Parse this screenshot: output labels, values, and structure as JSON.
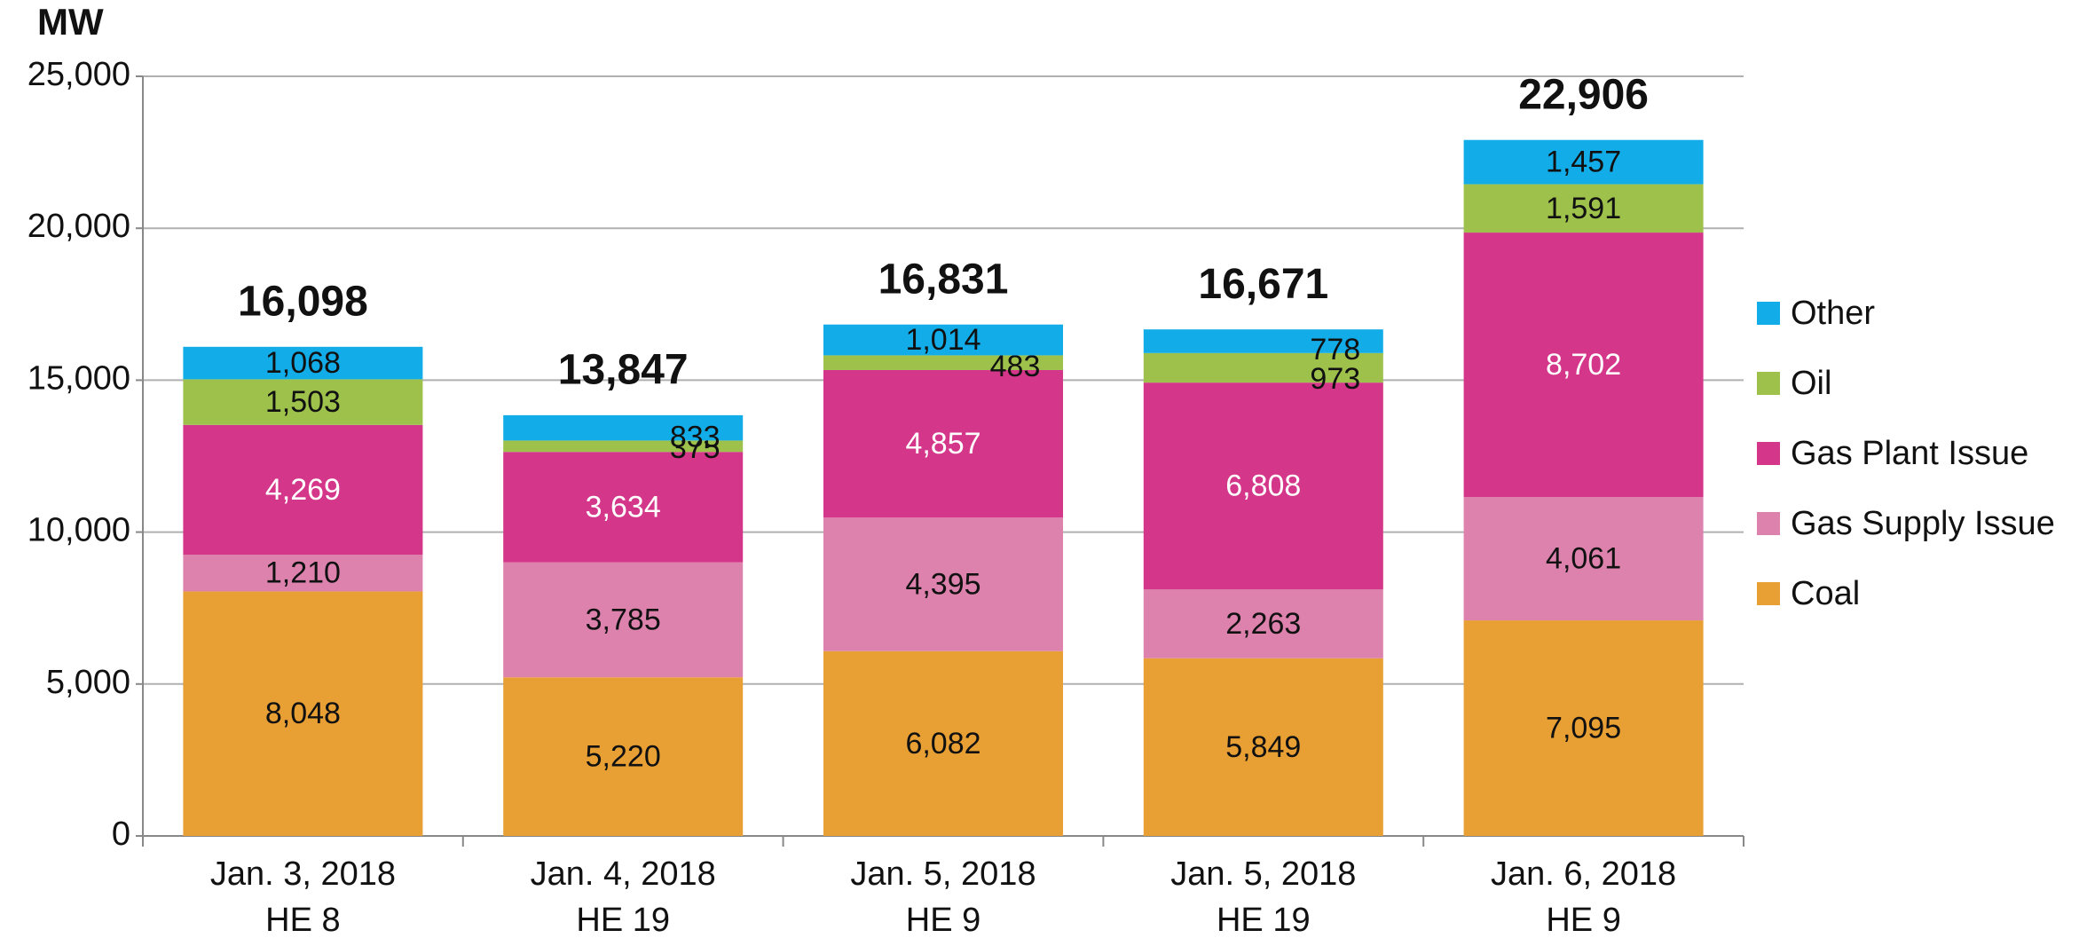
{
  "chart_data": {
    "type": "stacked_bar",
    "y_label": "MW",
    "categories": [
      [
        "Jan. 3, 2018",
        "HE 8"
      ],
      [
        "Jan. 4, 2018",
        "HE 19"
      ],
      [
        "Jan. 5, 2018",
        "HE 9"
      ],
      [
        "Jan. 5, 2018",
        "HE 19"
      ],
      [
        "Jan. 6, 2018",
        "HE 9"
      ]
    ],
    "series": [
      {
        "name": "Coal",
        "color": "#e89f33",
        "label_color": "#111111",
        "values": [
          8048,
          5220,
          6082,
          5849,
          7095
        ],
        "value_labels": [
          "8,048",
          "5,220",
          "6,082",
          "5,849",
          "7,095"
        ]
      },
      {
        "name": "Gas Supply Issue",
        "color": "#dc82ad",
        "label_color": "#111111",
        "values": [
          1210,
          3785,
          4395,
          2263,
          4061
        ],
        "value_labels": [
          "1,210",
          "3,785",
          "4,395",
          "2,263",
          "4,061"
        ]
      },
      {
        "name": "Gas Plant Issue",
        "color": "#d4368a",
        "label_color": "#ffffff",
        "values": [
          4269,
          3634,
          4857,
          6808,
          8702
        ],
        "value_labels": [
          "4,269",
          "3,634",
          "4,857",
          "6,808",
          "8,702"
        ]
      },
      {
        "name": "Oil",
        "color": "#9dc14b",
        "label_color": "#111111",
        "values": [
          1503,
          375,
          483,
          973,
          1591
        ],
        "value_labels": [
          "1,503",
          "375",
          "483",
          "973",
          "1,591"
        ]
      },
      {
        "name": "Other",
        "color": "#12ade8",
        "label_color": "#111111",
        "values": [
          1068,
          833,
          1014,
          778,
          1457
        ],
        "value_labels": [
          "1,068",
          "833",
          "1,014",
          "778",
          "1,457"
        ]
      }
    ],
    "totals": [
      16098,
      13847,
      16831,
      16671,
      22906
    ],
    "total_labels": [
      "16,098",
      "13,847",
      "16,831",
      "16,671",
      "22,906"
    ],
    "ylim": [
      0,
      25000
    ],
    "yticks": [
      0,
      {
        "value": 5000,
        "label": "5,000"
      },
      {
        "value": 10000,
        "label": "10,000"
      },
      {
        "value": 15000,
        "label": "15,000"
      },
      {
        "value": 20000,
        "label": "20,000"
      },
      {
        "value": 25000,
        "label": "25,000"
      }
    ],
    "grid": true,
    "legend": "right"
  }
}
